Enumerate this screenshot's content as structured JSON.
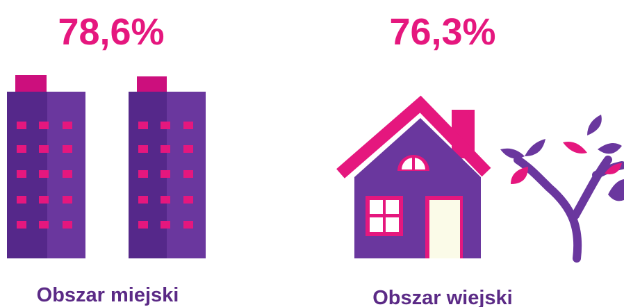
{
  "items": [
    {
      "value": "78,6%",
      "label": "Obszar miejski"
    },
    {
      "value": "76,3%",
      "label": "Obszar wiejski"
    }
  ]
}
